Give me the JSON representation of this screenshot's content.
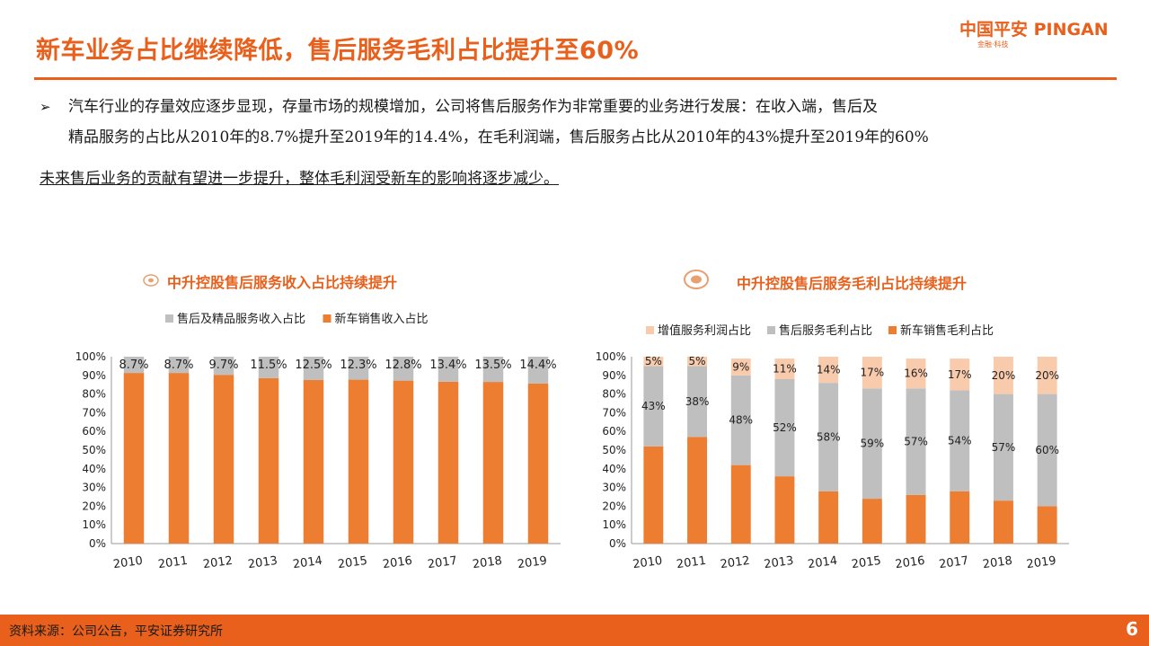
{
  "slide": {
    "title": "新车业务占比继续降低，售后服务毛利占比提升至60%",
    "logo_main": "中国平安 PINGAN",
    "logo_sub": "金融·科技",
    "bullet_symbol": "➢",
    "body_line1": "汽车行业的存量效应逐步显现，存量市场的规模增加，公司将售后服务作为非常重要的业务进行发展：在收入端，售后及",
    "body_line2": "精品服务的占比从2010年的8.7%提升至2019年的14.4%，在毛利润端，售后服务占比从2010年的43%提升至2019年的60%",
    "body_line3": "未来售后业务的贡献有望进一步提升，整体毛利润受新车的影响将逐步减少。",
    "source": "资料来源：公司公告，平安证券研究所",
    "page_number": "6"
  },
  "colors": {
    "orange": "#ed7d31",
    "gray": "#bfbfbf",
    "peach": "#f8cbad",
    "accent": "#e8601c"
  },
  "chart_data": [
    {
      "type": "bar",
      "stacked": true,
      "title": "中升控股售后服务收入占比持续提升",
      "categories": [
        "2010",
        "2011",
        "2012",
        "2013",
        "2014",
        "2015",
        "2016",
        "2017",
        "2018",
        "2019"
      ],
      "ylim": [
        0,
        100
      ],
      "yticks": [
        "0%",
        "10%",
        "20%",
        "30%",
        "40%",
        "50%",
        "60%",
        "70%",
        "80%",
        "90%",
        "100%"
      ],
      "legend_position": "top",
      "series": [
        {
          "name": "新车销售收入占比",
          "color": "#ed7d31",
          "values": [
            91.3,
            91.3,
            90.3,
            88.5,
            87.5,
            87.7,
            87.2,
            86.6,
            86.5,
            85.6
          ]
        },
        {
          "name": "售后及精品服务收入占比",
          "color": "#bfbfbf",
          "values": [
            8.7,
            8.7,
            9.7,
            11.5,
            12.5,
            12.3,
            12.8,
            13.4,
            13.5,
            14.4
          ],
          "labels": [
            "8.7%",
            "8.7%",
            "9.7%",
            "11.5%",
            "12.5%",
            "12.3%",
            "12.8%",
            "13.4%",
            "13.5%",
            "14.4%"
          ]
        }
      ],
      "legend": [
        {
          "name": "售后及精品服务收入占比",
          "color": "#bfbfbf"
        },
        {
          "name": "新车销售收入占比",
          "color": "#ed7d31"
        }
      ]
    },
    {
      "type": "bar",
      "stacked": true,
      "title": "中升控股售后服务毛利占比持续提升",
      "categories": [
        "2010",
        "2011",
        "2012",
        "2013",
        "2014",
        "2015",
        "2016",
        "2017",
        "2018",
        "2019"
      ],
      "ylim": [
        0,
        100
      ],
      "yticks": [
        "0%",
        "10%",
        "20%",
        "30%",
        "40%",
        "50%",
        "60%",
        "70%",
        "80%",
        "90%",
        "100%"
      ],
      "legend_position": "top",
      "series": [
        {
          "name": "新车销售毛利占比",
          "color": "#ed7d31",
          "values": [
            52,
            57,
            42,
            36,
            28,
            24,
            26,
            28,
            23,
            20
          ]
        },
        {
          "name": "售后服务毛利占比",
          "color": "#bfbfbf",
          "values": [
            43,
            38,
            48,
            52,
            58,
            59,
            57,
            54,
            57,
            60
          ],
          "labels": [
            "43%",
            "38%",
            "48%",
            "52%",
            "58%",
            "59%",
            "57%",
            "54%",
            "57%",
            "60%"
          ]
        },
        {
          "name": "增值服务利润占比",
          "color": "#f8cbad",
          "values": [
            5,
            5,
            9,
            11,
            14,
            17,
            16,
            17,
            20,
            20
          ],
          "labels": [
            "5%",
            "5%",
            "9%",
            "11%",
            "14%",
            "17%",
            "16%",
            "17%",
            "20%",
            "20%"
          ]
        }
      ],
      "legend": [
        {
          "name": "增值服务利润占比",
          "color": "#f8cbad"
        },
        {
          "name": "售后服务毛利占比",
          "color": "#bfbfbf"
        },
        {
          "name": "新车销售毛利占比",
          "color": "#ed7d31"
        }
      ]
    }
  ]
}
